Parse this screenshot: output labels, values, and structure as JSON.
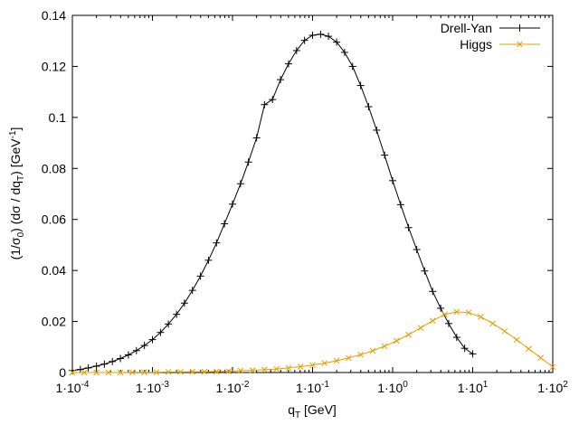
{
  "chart_data": {
    "type": "line",
    "xscale": "log",
    "xlabel": "q_T [GeV]",
    "ylabel": "(1/σ_0) (dσ / dq_T) [GeV^-1]",
    "xlim": [
      0.0001,
      100
    ],
    "ylim": [
      0,
      0.14
    ],
    "grid": false,
    "legend_position": "top-right",
    "x_ticks": [
      {
        "value": 0.0001,
        "mant": "1·10",
        "exp": "-4"
      },
      {
        "value": 0.001,
        "mant": "1·10",
        "exp": "-3"
      },
      {
        "value": 0.01,
        "mant": "1·10",
        "exp": "-2"
      },
      {
        "value": 0.1,
        "mant": "1·10",
        "exp": "-1"
      },
      {
        "value": 1,
        "mant": "1·10",
        "exp": "0"
      },
      {
        "value": 10,
        "mant": "1·10",
        "exp": "1"
      },
      {
        "value": 100,
        "mant": "1·10",
        "exp": "2"
      }
    ],
    "y_ticks": [
      {
        "value": 0,
        "label": "0"
      },
      {
        "value": 0.02,
        "label": "0.02"
      },
      {
        "value": 0.04,
        "label": "0.04"
      },
      {
        "value": 0.06,
        "label": "0.06"
      },
      {
        "value": 0.08,
        "label": "0.08"
      },
      {
        "value": 0.1,
        "label": "0.1"
      },
      {
        "value": 0.12,
        "label": "0.12"
      },
      {
        "value": 0.14,
        "label": "0.14"
      }
    ],
    "series": [
      {
        "name": "Drell-Yan",
        "color": "#000000",
        "marker": "plus",
        "x": [
          0.0001,
          0.000126,
          0.000158,
          0.0002,
          0.000251,
          0.000316,
          0.000398,
          0.000501,
          0.000631,
          0.000794,
          0.001,
          0.00126,
          0.00158,
          0.002,
          0.00251,
          0.00316,
          0.00398,
          0.00501,
          0.00631,
          0.00794,
          0.01,
          0.0126,
          0.0158,
          0.02,
          0.0251,
          0.0316,
          0.0398,
          0.0501,
          0.0631,
          0.0794,
          0.1,
          0.126,
          0.158,
          0.2,
          0.251,
          0.316,
          0.398,
          0.501,
          0.631,
          0.794,
          1,
          1.26,
          1.58,
          2,
          2.51,
          3.16,
          3.98,
          5.01,
          6.31,
          7.94,
          10
        ],
        "y": [
          0.0008,
          0.0012,
          0.0018,
          0.0025,
          0.0033,
          0.0043,
          0.0055,
          0.0069,
          0.0086,
          0.0106,
          0.0129,
          0.0157,
          0.019,
          0.0228,
          0.0272,
          0.0322,
          0.0378,
          0.044,
          0.0508,
          0.0583,
          0.066,
          0.074,
          0.0825,
          0.092,
          0.105,
          0.107,
          0.1148,
          0.121,
          0.1262,
          0.1302,
          0.1322,
          0.1326,
          0.1318,
          0.1295,
          0.1255,
          0.12,
          0.1125,
          0.1042,
          0.095,
          0.0852,
          0.0752,
          0.0658,
          0.0568,
          0.0482,
          0.0398,
          0.0318,
          0.0252,
          0.0192,
          0.0138,
          0.0095,
          0.0073
        ]
      },
      {
        "name": "Higgs",
        "color": "#E69F00",
        "marker": "cross",
        "x": [
          0.0001,
          0.000141,
          0.0002,
          0.000282,
          0.000398,
          0.000562,
          0.000794,
          0.00112,
          0.00158,
          0.00224,
          0.00316,
          0.00447,
          0.00631,
          0.00891,
          0.0126,
          0.0178,
          0.0251,
          0.0355,
          0.0501,
          0.0708,
          0.1,
          0.141,
          0.2,
          0.282,
          0.398,
          0.562,
          0.794,
          1.12,
          1.58,
          2.24,
          3.16,
          4.47,
          6.31,
          8.91,
          12.6,
          17.8,
          25.1,
          35.5,
          50.1,
          70.8,
          100
        ],
        "y": [
          0.0,
          0.0,
          0.0,
          0.0,
          0.0,
          0.0001,
          0.0001,
          0.0001,
          0.0002,
          0.0002,
          0.0003,
          0.0003,
          0.0004,
          0.0005,
          0.0007,
          0.0009,
          0.0011,
          0.0014,
          0.0018,
          0.0023,
          0.0029,
          0.0037,
          0.0046,
          0.0057,
          0.007,
          0.0085,
          0.0103,
          0.0124,
          0.0148,
          0.0175,
          0.0203,
          0.0228,
          0.0238,
          0.0235,
          0.0218,
          0.0192,
          0.0162,
          0.0128,
          0.0093,
          0.0058,
          0.0022
        ]
      }
    ]
  }
}
